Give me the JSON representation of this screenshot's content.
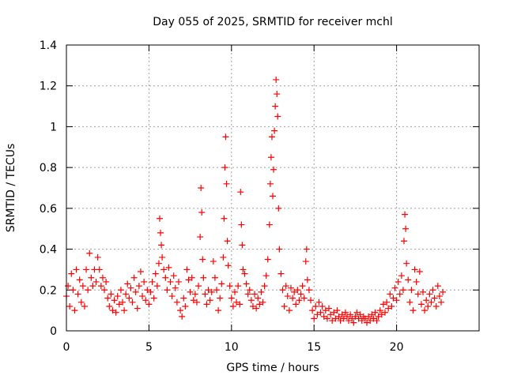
{
  "chart_data": {
    "type": "scatter",
    "title": "Day 055 of 2025, SRMTID for receiver mchl",
    "xlabel": "GPS time / hours",
    "ylabel": "SRMTID / TECUs",
    "xlim": [
      0,
      25
    ],
    "ylim": [
      0,
      1.4
    ],
    "xticks": [
      0,
      5,
      10,
      15,
      20
    ],
    "xtick_labels": [
      "0",
      "5",
      "10",
      "15",
      "20"
    ],
    "yticks": [
      0,
      0.2,
      0.4,
      0.6,
      0.8,
      1.0,
      1.2,
      1.4
    ],
    "ytick_labels": [
      "0",
      "0.2",
      "0.4",
      "0.6",
      "0.8",
      "1",
      "1.2",
      "1.4"
    ],
    "grid": true,
    "marker": "plus",
    "series": [
      {
        "name": "SRMTID",
        "color": "#ff0000",
        "points": [
          [
            0.0,
            0.17
          ],
          [
            0.1,
            0.22
          ],
          [
            0.2,
            0.12
          ],
          [
            0.3,
            0.28
          ],
          [
            0.4,
            0.2
          ],
          [
            0.5,
            0.1
          ],
          [
            0.6,
            0.3
          ],
          [
            0.7,
            0.18
          ],
          [
            0.8,
            0.25
          ],
          [
            0.9,
            0.14
          ],
          [
            1.0,
            0.22
          ],
          [
            1.1,
            0.12
          ],
          [
            1.2,
            0.3
          ],
          [
            1.3,
            0.2
          ],
          [
            1.4,
            0.38
          ],
          [
            1.5,
            0.26
          ],
          [
            1.6,
            0.22
          ],
          [
            1.7,
            0.3
          ],
          [
            1.8,
            0.24
          ],
          [
            1.9,
            0.36
          ],
          [
            2.0,
            0.3
          ],
          [
            2.1,
            0.22
          ],
          [
            2.2,
            0.26
          ],
          [
            2.3,
            0.2
          ],
          [
            2.4,
            0.24
          ],
          [
            2.5,
            0.16
          ],
          [
            2.6,
            0.12
          ],
          [
            2.7,
            0.18
          ],
          [
            2.8,
            0.1
          ],
          [
            2.9,
            0.15
          ],
          [
            3.0,
            0.09
          ],
          [
            3.1,
            0.17
          ],
          [
            3.2,
            0.13
          ],
          [
            3.3,
            0.2
          ],
          [
            3.4,
            0.14
          ],
          [
            3.5,
            0.1
          ],
          [
            3.6,
            0.18
          ],
          [
            3.7,
            0.23
          ],
          [
            3.8,
            0.16
          ],
          [
            3.9,
            0.21
          ],
          [
            4.0,
            0.14
          ],
          [
            4.1,
            0.26
          ],
          [
            4.2,
            0.19
          ],
          [
            4.3,
            0.11
          ],
          [
            4.4,
            0.22
          ],
          [
            4.5,
            0.29
          ],
          [
            4.6,
            0.17
          ],
          [
            4.7,
            0.24
          ],
          [
            4.8,
            0.15
          ],
          [
            4.9,
            0.2
          ],
          [
            5.0,
            0.13
          ],
          [
            5.1,
            0.19
          ],
          [
            5.2,
            0.24
          ],
          [
            5.3,
            0.16
          ],
          [
            5.4,
            0.28
          ],
          [
            5.5,
            0.22
          ],
          [
            5.6,
            0.33
          ],
          [
            5.65,
            0.55
          ],
          [
            5.7,
            0.48
          ],
          [
            5.75,
            0.42
          ],
          [
            5.8,
            0.36
          ],
          [
            5.9,
            0.3
          ],
          [
            6.0,
            0.26
          ],
          [
            6.1,
            0.2
          ],
          [
            6.2,
            0.31
          ],
          [
            6.3,
            0.24
          ],
          [
            6.4,
            0.17
          ],
          [
            6.5,
            0.27
          ],
          [
            6.6,
            0.21
          ],
          [
            6.7,
            0.14
          ],
          [
            6.8,
            0.24
          ],
          [
            6.9,
            0.1
          ],
          [
            7.0,
            0.07
          ],
          [
            7.1,
            0.16
          ],
          [
            7.2,
            0.12
          ],
          [
            7.3,
            0.3
          ],
          [
            7.4,
            0.25
          ],
          [
            7.5,
            0.19
          ],
          [
            7.6,
            0.26
          ],
          [
            7.7,
            0.15
          ],
          [
            7.8,
            0.18
          ],
          [
            7.9,
            0.14
          ],
          [
            8.0,
            0.22
          ],
          [
            8.1,
            0.46
          ],
          [
            8.15,
            0.7
          ],
          [
            8.2,
            0.58
          ],
          [
            8.25,
            0.35
          ],
          [
            8.3,
            0.26
          ],
          [
            8.4,
            0.18
          ],
          [
            8.5,
            0.13
          ],
          [
            8.6,
            0.2
          ],
          [
            8.7,
            0.15
          ],
          [
            8.8,
            0.19
          ],
          [
            8.9,
            0.34
          ],
          [
            9.0,
            0.26
          ],
          [
            9.1,
            0.2
          ],
          [
            9.2,
            0.1
          ],
          [
            9.3,
            0.16
          ],
          [
            9.4,
            0.23
          ],
          [
            9.5,
            0.36
          ],
          [
            9.55,
            0.55
          ],
          [
            9.6,
            0.8
          ],
          [
            9.65,
            0.95
          ],
          [
            9.7,
            0.72
          ],
          [
            9.75,
            0.44
          ],
          [
            9.8,
            0.32
          ],
          [
            9.9,
            0.22
          ],
          [
            10.0,
            0.16
          ],
          [
            10.1,
            0.12
          ],
          [
            10.2,
            0.19
          ],
          [
            10.3,
            0.14
          ],
          [
            10.4,
            0.22
          ],
          [
            10.5,
            0.13
          ],
          [
            10.55,
            0.68
          ],
          [
            10.6,
            0.52
          ],
          [
            10.65,
            0.42
          ],
          [
            10.7,
            0.3
          ],
          [
            10.8,
            0.28
          ],
          [
            10.9,
            0.23
          ],
          [
            11.0,
            0.18
          ],
          [
            11.1,
            0.2
          ],
          [
            11.2,
            0.15
          ],
          [
            11.3,
            0.12
          ],
          [
            11.4,
            0.18
          ],
          [
            11.5,
            0.11
          ],
          [
            11.6,
            0.16
          ],
          [
            11.7,
            0.13
          ],
          [
            11.8,
            0.19
          ],
          [
            11.9,
            0.14
          ],
          [
            12.0,
            0.22
          ],
          [
            12.1,
            0.27
          ],
          [
            12.2,
            0.35
          ],
          [
            12.3,
            0.52
          ],
          [
            12.35,
            0.72
          ],
          [
            12.4,
            0.85
          ],
          [
            12.45,
            0.95
          ],
          [
            12.5,
            0.66
          ],
          [
            12.55,
            0.79
          ],
          [
            12.6,
            0.98
          ],
          [
            12.65,
            1.1
          ],
          [
            12.7,
            1.23
          ],
          [
            12.75,
            1.16
          ],
          [
            12.8,
            1.05
          ],
          [
            12.85,
            0.6
          ],
          [
            12.9,
            0.4
          ],
          [
            13.0,
            0.28
          ],
          [
            13.1,
            0.2
          ],
          [
            13.2,
            0.12
          ],
          [
            13.3,
            0.22
          ],
          [
            13.4,
            0.17
          ],
          [
            13.5,
            0.1
          ],
          [
            13.6,
            0.21
          ],
          [
            13.7,
            0.16
          ],
          [
            13.8,
            0.19
          ],
          [
            13.9,
            0.13
          ],
          [
            14.0,
            0.2
          ],
          [
            14.1,
            0.15
          ],
          [
            14.2,
            0.18
          ],
          [
            14.3,
            0.22
          ],
          [
            14.4,
            0.16
          ],
          [
            14.5,
            0.34
          ],
          [
            14.55,
            0.4
          ],
          [
            14.6,
            0.25
          ],
          [
            14.7,
            0.2
          ],
          [
            14.8,
            0.15
          ],
          [
            14.9,
            0.1
          ],
          [
            15.0,
            0.06
          ],
          [
            15.1,
            0.12
          ],
          [
            15.2,
            0.08
          ],
          [
            15.3,
            0.14
          ],
          [
            15.4,
            0.09
          ],
          [
            15.5,
            0.12
          ],
          [
            15.6,
            0.07
          ],
          [
            15.7,
            0.1
          ],
          [
            15.8,
            0.06
          ],
          [
            15.9,
            0.11
          ],
          [
            16.0,
            0.08
          ],
          [
            16.1,
            0.05
          ],
          [
            16.2,
            0.09
          ],
          [
            16.3,
            0.06
          ],
          [
            16.4,
            0.1
          ],
          [
            16.5,
            0.07
          ],
          [
            16.6,
            0.05
          ],
          [
            16.7,
            0.08
          ],
          [
            16.8,
            0.06
          ],
          [
            16.9,
            0.09
          ],
          [
            17.0,
            0.07
          ],
          [
            17.1,
            0.05
          ],
          [
            17.2,
            0.08
          ],
          [
            17.3,
            0.06
          ],
          [
            17.4,
            0.04
          ],
          [
            17.5,
            0.07
          ],
          [
            17.6,
            0.09
          ],
          [
            17.7,
            0.06
          ],
          [
            17.8,
            0.08
          ],
          [
            17.9,
            0.05
          ],
          [
            18.0,
            0.07
          ],
          [
            18.1,
            0.06
          ],
          [
            18.2,
            0.04
          ],
          [
            18.3,
            0.07
          ],
          [
            18.4,
            0.05
          ],
          [
            18.5,
            0.08
          ],
          [
            18.6,
            0.06
          ],
          [
            18.7,
            0.09
          ],
          [
            18.8,
            0.05
          ],
          [
            18.9,
            0.07
          ],
          [
            19.0,
            0.1
          ],
          [
            19.1,
            0.08
          ],
          [
            19.2,
            0.13
          ],
          [
            19.3,
            0.09
          ],
          [
            19.4,
            0.14
          ],
          [
            19.5,
            0.11
          ],
          [
            19.6,
            0.18
          ],
          [
            19.7,
            0.12
          ],
          [
            19.8,
            0.16
          ],
          [
            19.9,
            0.21
          ],
          [
            20.0,
            0.15
          ],
          [
            20.1,
            0.24
          ],
          [
            20.2,
            0.18
          ],
          [
            20.3,
            0.27
          ],
          [
            20.4,
            0.2
          ],
          [
            20.45,
            0.44
          ],
          [
            20.5,
            0.57
          ],
          [
            20.55,
            0.5
          ],
          [
            20.6,
            0.33
          ],
          [
            20.7,
            0.25
          ],
          [
            20.8,
            0.14
          ],
          [
            20.9,
            0.2
          ],
          [
            21.0,
            0.1
          ],
          [
            21.1,
            0.3
          ],
          [
            21.2,
            0.24
          ],
          [
            21.3,
            0.18
          ],
          [
            21.4,
            0.29
          ],
          [
            21.5,
            0.13
          ],
          [
            21.6,
            0.19
          ],
          [
            21.7,
            0.1
          ],
          [
            21.8,
            0.15
          ],
          [
            21.9,
            0.12
          ],
          [
            22.0,
            0.18
          ],
          [
            22.1,
            0.14
          ],
          [
            22.2,
            0.2
          ],
          [
            22.3,
            0.16
          ],
          [
            22.4,
            0.12
          ],
          [
            22.5,
            0.22
          ],
          [
            22.6,
            0.17
          ],
          [
            22.7,
            0.14
          ],
          [
            22.8,
            0.19
          ]
        ]
      }
    ]
  }
}
